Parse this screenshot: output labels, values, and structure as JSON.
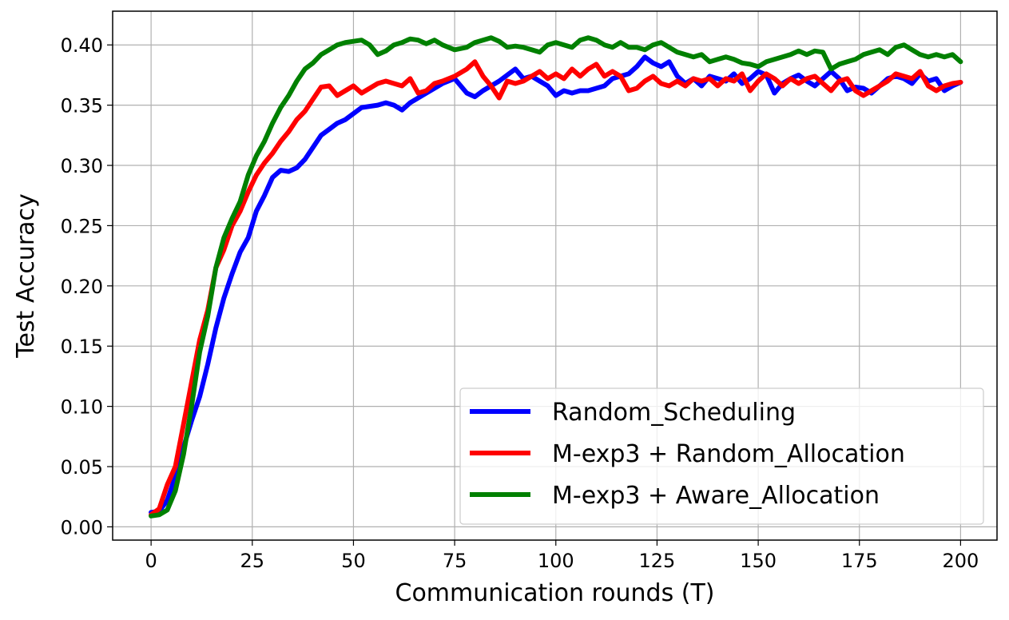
{
  "chart_data": {
    "type": "line",
    "xlabel": "Communication rounds (T)",
    "ylabel": "Test Accuracy",
    "xlim": [
      -9.5,
      209
    ],
    "ylim": [
      -0.011,
      0.428
    ],
    "xticks": [
      0,
      25,
      50,
      75,
      100,
      125,
      150,
      175,
      200
    ],
    "yticks": [
      0.0,
      0.05,
      0.1,
      0.15,
      0.2,
      0.25,
      0.3,
      0.35,
      0.4
    ],
    "ytick_labels": [
      "0.00",
      "0.05",
      "0.10",
      "0.15",
      "0.20",
      "0.25",
      "0.30",
      "0.35",
      "0.40"
    ],
    "grid": true,
    "legend_position": "lower right",
    "series": [
      {
        "name": "Random_Scheduling",
        "color": "#0000ff",
        "x": [
          0,
          2,
          4,
          6,
          8,
          10,
          12,
          14,
          16,
          18,
          20,
          22,
          24,
          26,
          28,
          30,
          32,
          34,
          36,
          38,
          40,
          42,
          44,
          46,
          48,
          50,
          52,
          54,
          56,
          58,
          60,
          62,
          64,
          66,
          68,
          70,
          72,
          75,
          78,
          80,
          82,
          84,
          86,
          88,
          90,
          92,
          94,
          96,
          98,
          100,
          102,
          104,
          106,
          108,
          110,
          112,
          114,
          116,
          118,
          120,
          122,
          124,
          126,
          128,
          130,
          132,
          134,
          136,
          138,
          140,
          142,
          144,
          146,
          148,
          150,
          152,
          154,
          156,
          158,
          160,
          162,
          164,
          166,
          168,
          170,
          172,
          174,
          176,
          178,
          180,
          182,
          184,
          186,
          188,
          190,
          192,
          194,
          196,
          198,
          200
        ],
        "y": [
          0.012,
          0.013,
          0.022,
          0.042,
          0.066,
          0.088,
          0.108,
          0.135,
          0.165,
          0.19,
          0.21,
          0.228,
          0.24,
          0.262,
          0.275,
          0.29,
          0.296,
          0.295,
          0.298,
          0.305,
          0.315,
          0.325,
          0.33,
          0.335,
          0.338,
          0.343,
          0.348,
          0.349,
          0.35,
          0.352,
          0.35,
          0.346,
          0.352,
          0.356,
          0.36,
          0.364,
          0.368,
          0.372,
          0.36,
          0.357,
          0.362,
          0.366,
          0.37,
          0.375,
          0.38,
          0.372,
          0.374,
          0.37,
          0.366,
          0.358,
          0.362,
          0.36,
          0.362,
          0.362,
          0.364,
          0.366,
          0.372,
          0.374,
          0.376,
          0.382,
          0.39,
          0.385,
          0.382,
          0.386,
          0.374,
          0.368,
          0.372,
          0.366,
          0.374,
          0.372,
          0.37,
          0.376,
          0.368,
          0.372,
          0.378,
          0.375,
          0.36,
          0.368,
          0.372,
          0.375,
          0.37,
          0.366,
          0.372,
          0.378,
          0.372,
          0.362,
          0.365,
          0.364,
          0.36,
          0.366,
          0.372,
          0.374,
          0.372,
          0.368,
          0.376,
          0.37,
          0.372,
          0.362,
          0.366,
          0.369
        ]
      },
      {
        "name": "M-exp3 + Random_Allocation",
        "color": "#ff0000",
        "x": [
          0,
          2,
          4,
          6,
          8,
          10,
          12,
          14,
          16,
          18,
          20,
          22,
          24,
          26,
          28,
          30,
          32,
          34,
          36,
          38,
          40,
          42,
          44,
          46,
          48,
          50,
          52,
          54,
          56,
          58,
          60,
          62,
          64,
          66,
          68,
          70,
          72,
          75,
          78,
          80,
          82,
          84,
          86,
          88,
          90,
          92,
          94,
          96,
          98,
          100,
          102,
          104,
          106,
          108,
          110,
          112,
          114,
          116,
          118,
          120,
          122,
          124,
          126,
          128,
          130,
          132,
          134,
          136,
          138,
          140,
          142,
          144,
          146,
          148,
          150,
          152,
          154,
          156,
          158,
          160,
          162,
          164,
          166,
          168,
          170,
          172,
          174,
          176,
          178,
          180,
          182,
          184,
          186,
          188,
          190,
          192,
          194,
          196,
          198,
          200
        ],
        "y": [
          0.01,
          0.015,
          0.035,
          0.05,
          0.085,
          0.12,
          0.155,
          0.18,
          0.215,
          0.23,
          0.25,
          0.262,
          0.278,
          0.292,
          0.302,
          0.31,
          0.32,
          0.328,
          0.338,
          0.345,
          0.355,
          0.365,
          0.366,
          0.358,
          0.362,
          0.366,
          0.36,
          0.364,
          0.368,
          0.37,
          0.368,
          0.366,
          0.372,
          0.36,
          0.362,
          0.368,
          0.37,
          0.374,
          0.38,
          0.386,
          0.374,
          0.366,
          0.356,
          0.37,
          0.368,
          0.37,
          0.374,
          0.378,
          0.372,
          0.376,
          0.372,
          0.38,
          0.374,
          0.38,
          0.384,
          0.374,
          0.378,
          0.374,
          0.362,
          0.364,
          0.37,
          0.374,
          0.368,
          0.366,
          0.37,
          0.366,
          0.372,
          0.37,
          0.372,
          0.366,
          0.372,
          0.37,
          0.376,
          0.362,
          0.37,
          0.376,
          0.372,
          0.366,
          0.372,
          0.368,
          0.372,
          0.374,
          0.368,
          0.362,
          0.37,
          0.372,
          0.362,
          0.358,
          0.362,
          0.366,
          0.37,
          0.376,
          0.374,
          0.372,
          0.378,
          0.366,
          0.362,
          0.366,
          0.368,
          0.369
        ]
      },
      {
        "name": "M-exp3 + Aware_Allocation",
        "color": "#008000",
        "x": [
          0,
          2,
          4,
          6,
          8,
          10,
          12,
          14,
          16,
          18,
          20,
          22,
          24,
          26,
          28,
          30,
          32,
          34,
          36,
          38,
          40,
          42,
          44,
          46,
          48,
          50,
          52,
          54,
          56,
          58,
          60,
          62,
          64,
          66,
          68,
          70,
          72,
          75,
          78,
          80,
          82,
          84,
          86,
          88,
          90,
          92,
          94,
          96,
          98,
          100,
          102,
          104,
          106,
          108,
          110,
          112,
          114,
          116,
          118,
          120,
          122,
          124,
          126,
          128,
          130,
          132,
          134,
          136,
          138,
          140,
          142,
          144,
          146,
          148,
          150,
          152,
          154,
          156,
          158,
          160,
          162,
          164,
          166,
          168,
          170,
          172,
          174,
          176,
          178,
          180,
          182,
          184,
          186,
          188,
          190,
          192,
          194,
          196,
          198,
          200
        ],
        "y": [
          0.009,
          0.01,
          0.014,
          0.03,
          0.06,
          0.1,
          0.145,
          0.175,
          0.215,
          0.24,
          0.256,
          0.27,
          0.292,
          0.308,
          0.32,
          0.335,
          0.348,
          0.358,
          0.37,
          0.38,
          0.385,
          0.392,
          0.396,
          0.4,
          0.402,
          0.403,
          0.404,
          0.4,
          0.392,
          0.395,
          0.4,
          0.402,
          0.405,
          0.404,
          0.401,
          0.404,
          0.4,
          0.396,
          0.398,
          0.402,
          0.404,
          0.406,
          0.403,
          0.398,
          0.399,
          0.398,
          0.396,
          0.394,
          0.4,
          0.402,
          0.4,
          0.398,
          0.404,
          0.406,
          0.404,
          0.4,
          0.398,
          0.402,
          0.398,
          0.398,
          0.396,
          0.4,
          0.402,
          0.398,
          0.394,
          0.392,
          0.39,
          0.392,
          0.386,
          0.388,
          0.39,
          0.388,
          0.385,
          0.384,
          0.382,
          0.386,
          0.388,
          0.39,
          0.392,
          0.395,
          0.392,
          0.395,
          0.394,
          0.38,
          0.384,
          0.386,
          0.388,
          0.392,
          0.394,
          0.396,
          0.392,
          0.398,
          0.4,
          0.396,
          0.392,
          0.39,
          0.392,
          0.39,
          0.392,
          0.386
        ]
      }
    ]
  }
}
